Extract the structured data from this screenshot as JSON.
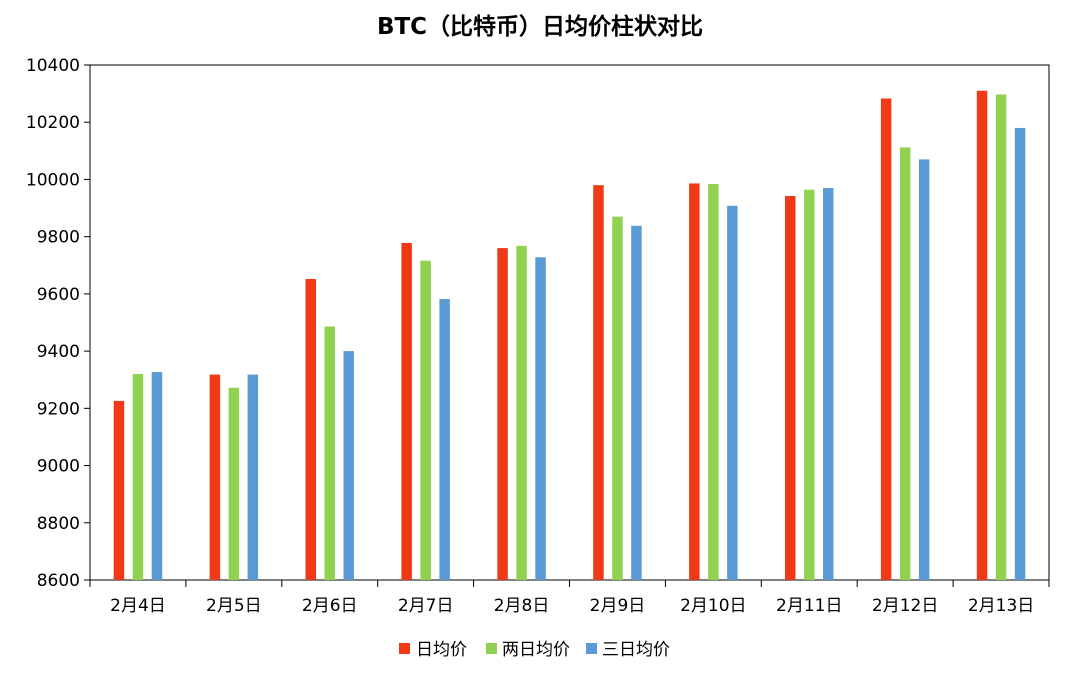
{
  "chart_data": {
    "type": "bar",
    "title": "BTC（比特币）日均价柱状对比",
    "xlabel": "",
    "ylabel": "",
    "categories": [
      "2月4日",
      "2月5日",
      "2月6日",
      "2月7日",
      "2月8日",
      "2月9日",
      "2月10日",
      "2月11日",
      "2月12日",
      "2月13日"
    ],
    "series": [
      {
        "name": "日均价",
        "color": "#f03a17",
        "values": [
          9226,
          9318,
          9652,
          9778,
          9760,
          9980,
          9986,
          9942,
          10283,
          10310
        ]
      },
      {
        "name": "两日均价",
        "color": "#92d050",
        "values": [
          9320,
          9272,
          9486,
          9716,
          9768,
          9870,
          9984,
          9964,
          10112,
          10297
        ]
      },
      {
        "name": "三日均价",
        "color": "#5b9bd5",
        "values": [
          9327,
          9318,
          9400,
          9582,
          9728,
          9838,
          9908,
          9970,
          10070,
          10180
        ]
      }
    ],
    "ylim": [
      8600,
      10400
    ],
    "yticks": [
      8600,
      8800,
      9000,
      9200,
      9400,
      9600,
      9800,
      10000,
      10200,
      10400
    ],
    "grid": false,
    "legend_position": "bottom"
  }
}
